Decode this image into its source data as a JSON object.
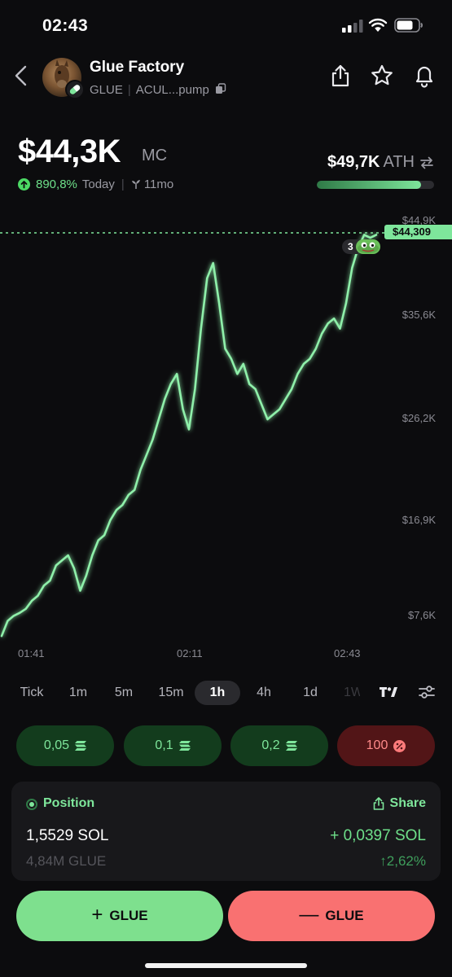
{
  "status_bar": {
    "time": "02:43"
  },
  "header": {
    "name": "Glue Factory",
    "ticker": "GLUE",
    "address": "ACUL...pump",
    "icons": [
      "back-chevron-icon",
      "share-icon",
      "star-icon",
      "bell-icon",
      "copy-icon"
    ]
  },
  "market": {
    "mc_value": "$44,3K",
    "mc_label": "MC",
    "change_pct": "890,8%",
    "change_period": "Today",
    "age": "11mo",
    "ath_value": "$49,7K",
    "ath_label": "ATH",
    "ath_progress": 0.89
  },
  "chart": {
    "current_price_tag": "$44,309",
    "marker_count": "3",
    "y_ticks": [
      "$44,9K",
      "$35,6K",
      "$26,2K",
      "$16,9K",
      "$7,6K"
    ],
    "x_ticks": [
      "01:41",
      "02:11",
      "02:43"
    ]
  },
  "chart_data": {
    "type": "line",
    "x_range": [
      "01:41",
      "02:43"
    ],
    "y_unit": "market cap (USD, thousands)",
    "ylim": [
      5,
      47
    ],
    "series": [
      {
        "values": [
          4.5,
          6.0,
          6.5,
          6.8,
          7.2,
          8.0,
          8.5,
          9.5,
          10.0,
          11.5,
          12.0,
          12.5,
          11.2,
          9.0,
          10.5,
          12.5,
          14.0,
          14.5,
          16.0,
          17.0,
          17.5,
          18.5,
          19.0,
          21.0,
          22.5,
          24.0,
          26.0,
          28.0,
          29.5,
          30.5,
          27.0,
          25.0,
          29.0,
          35.0,
          40.0,
          41.5,
          37.5,
          33.0,
          32.0,
          30.5,
          31.5,
          29.5,
          29.0,
          27.5,
          26.0,
          26.5,
          27.0,
          28.0,
          29.0,
          30.5,
          31.5,
          32.0,
          33.0,
          34.5,
          35.5,
          36.0,
          35.0,
          37.5,
          41.0,
          43.0,
          44.3,
          44.0,
          44.3
        ]
      }
    ],
    "grid": false,
    "current_value_label": "$44,309"
  },
  "timeframes": {
    "items": [
      "Tick",
      "1m",
      "5m",
      "15m",
      "1h",
      "4h",
      "1d",
      "1W"
    ],
    "active": "1h"
  },
  "quick_buy": {
    "amounts": [
      "0,05",
      "0,1",
      "0,2"
    ],
    "sell_pct": "100"
  },
  "position": {
    "title": "Position",
    "share_label": "Share",
    "sol_amount": "1,5529 SOL",
    "pnl_sol": "+ 0,0397 SOL",
    "glue_amount": "4,84M GLUE",
    "pnl_pct": "↑2,62%"
  },
  "actions": {
    "buy_label": "GLUE",
    "sell_label": "GLUE"
  },
  "colors": {
    "accent_green": "#7ee69b",
    "sell_red": "#f97171",
    "background": "#0c0c0e"
  }
}
